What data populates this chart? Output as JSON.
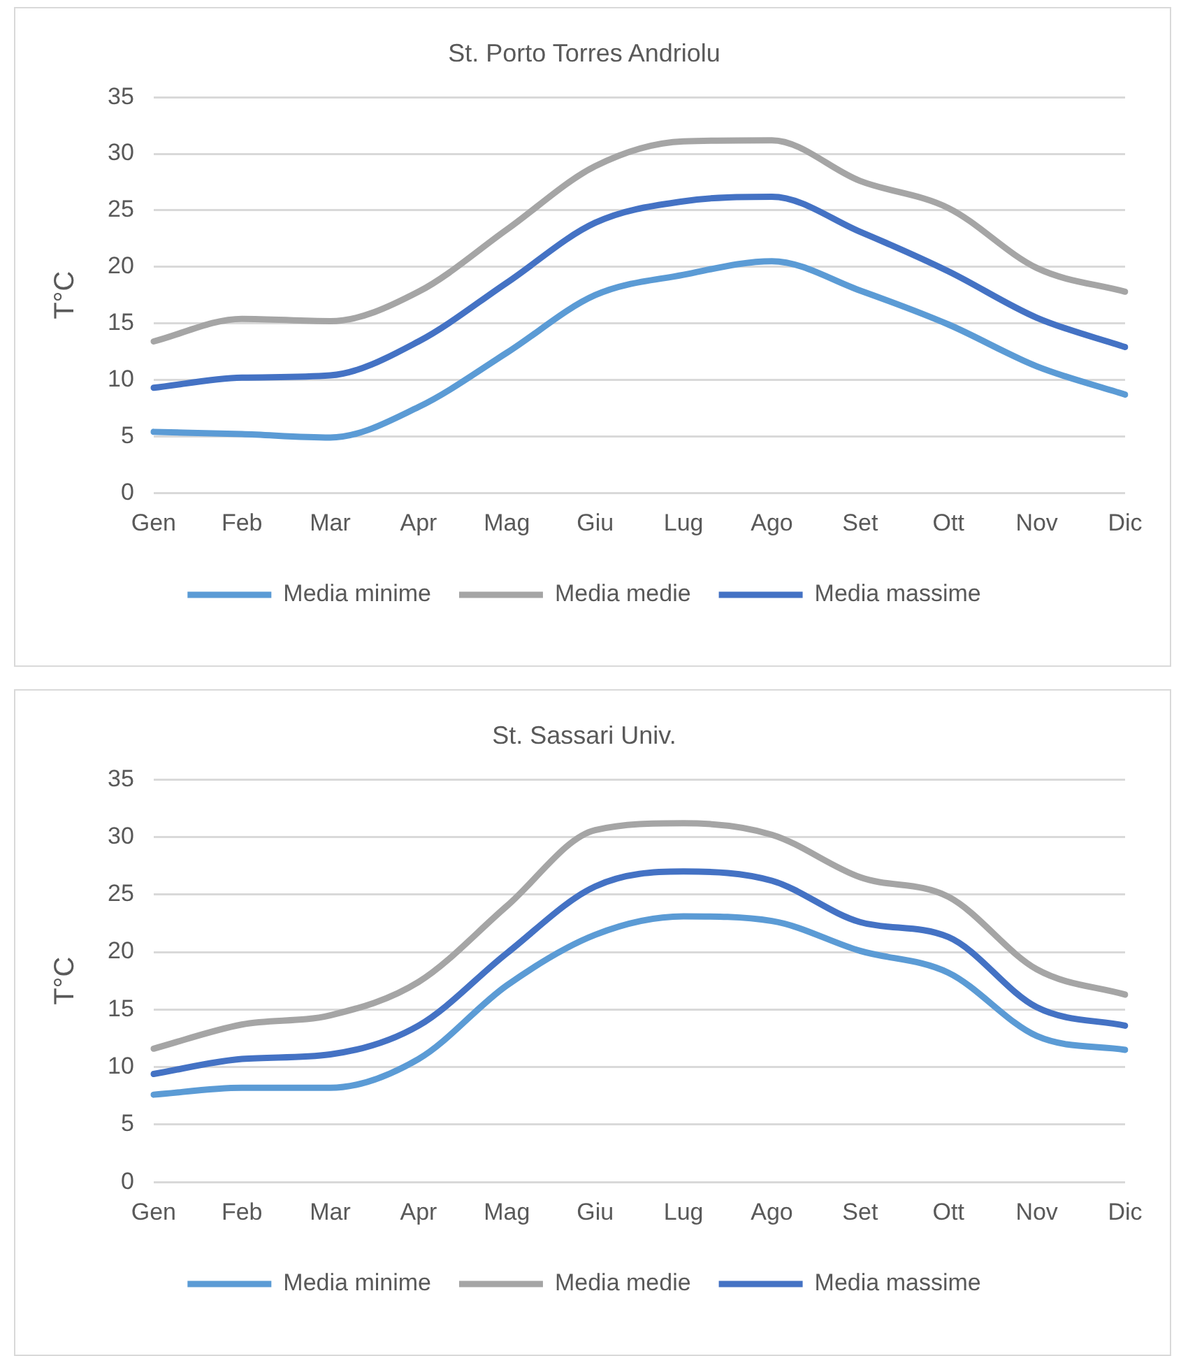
{
  "chart_data": [
    {
      "type": "line",
      "title": "St. Porto Torres Andriolu",
      "ylabel": "T°C",
      "categories": [
        "Gen",
        "Feb",
        "Mar",
        "Apr",
        "Mag",
        "Giu",
        "Lug",
        "Ago",
        "Set",
        "Ott",
        "Nov",
        "Dic"
      ],
      "ylim": [
        0,
        35
      ],
      "yticks": [
        0,
        5,
        10,
        15,
        20,
        25,
        30,
        35
      ],
      "grid": "y",
      "legend": "bottom",
      "marker": "none",
      "line_style": "solid",
      "series": [
        {
          "name": "Media minime",
          "color": "#5b9bd5",
          "values": [
            5.4,
            5.2,
            4.9,
            7.6,
            12.4,
            17.5,
            19.3,
            20.5,
            17.9,
            14.9,
            11.2,
            8.7
          ]
        },
        {
          "name": "Media medie",
          "color": "#a5a5a5",
          "values": [
            13.4,
            15.4,
            15.2,
            17.8,
            23.3,
            28.9,
            31.1,
            31.2,
            27.6,
            25.2,
            19.9,
            17.8
          ]
        },
        {
          "name": "Media massime",
          "color": "#4472c4",
          "values": [
            9.3,
            10.2,
            10.4,
            13.4,
            18.6,
            23.9,
            25.8,
            26.2,
            23.1,
            19.6,
            15.5,
            12.9
          ]
        }
      ]
    },
    {
      "type": "line",
      "title": "St. Sassari Univ.",
      "ylabel": "T°C",
      "categories": [
        "Gen",
        "Feb",
        "Mar",
        "Apr",
        "Mag",
        "Giu",
        "Lug",
        "Ago",
        "Set",
        "Ott",
        "Nov",
        "Dic"
      ],
      "ylim": [
        0,
        35
      ],
      "yticks": [
        0,
        5,
        10,
        15,
        20,
        25,
        30,
        35
      ],
      "grid": "y",
      "legend": "bottom",
      "marker": "none",
      "line_style": "solid",
      "series": [
        {
          "name": "Media minime",
          "color": "#5b9bd5",
          "values": [
            7.6,
            8.2,
            8.2,
            10.7,
            17.1,
            21.5,
            23.1,
            22.7,
            20.1,
            18.2,
            12.7,
            11.5
          ]
        },
        {
          "name": "Media medie",
          "color": "#a5a5a5",
          "values": [
            11.6,
            13.7,
            14.5,
            17.4,
            24.0,
            30.6,
            31.2,
            30.2,
            26.5,
            24.8,
            18.5,
            16.3
          ]
        },
        {
          "name": "Media massime",
          "color": "#4472c4",
          "values": [
            9.4,
            10.7,
            11.1,
            13.6,
            19.9,
            25.7,
            27.0,
            26.2,
            22.6,
            21.3,
            15.2,
            13.6
          ]
        }
      ]
    }
  ]
}
